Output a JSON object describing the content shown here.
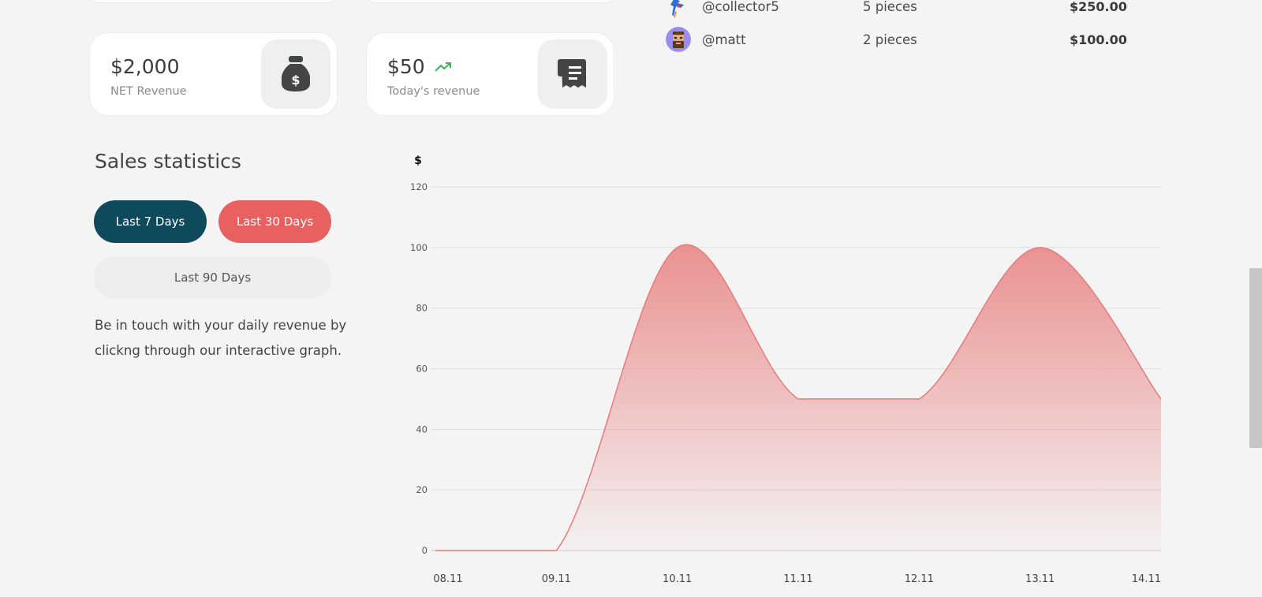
{
  "stats": {
    "net_revenue": {
      "value": "$2,000",
      "label": "NET Revenue",
      "icon": "money-bag-icon"
    },
    "todays_revenue": {
      "value": "$50",
      "label": "Today's revenue",
      "trend_icon": "trending-up-icon",
      "icon": "receipt-icon"
    }
  },
  "buyers": [
    {
      "handle": "@collector5",
      "pieces": "5 pieces",
      "amount": "$250.00",
      "avatar": "bird-avatar"
    },
    {
      "handle": "@matt",
      "pieces": "2 pieces",
      "amount": "$100.00",
      "avatar": "bearded-man-avatar"
    }
  ],
  "sales": {
    "title": "Sales statistics",
    "buttons": {
      "last7": "Last 7 Days",
      "last30": "Last 30 Days",
      "last90": "Last 90 Days"
    },
    "description": "Be in touch with your daily revenue by clickng through our interactive graph."
  },
  "colors": {
    "accent_dark": "#0f4a5c",
    "accent_coral": "#e8605f",
    "trend_green": "#3cb35a",
    "area": "#e98c8c"
  },
  "chart_data": {
    "type": "area",
    "title": "",
    "ylabel": "$",
    "xlabel": "",
    "categories": [
      "08.11",
      "09.11",
      "10.11",
      "11.11",
      "12.11",
      "13.11",
      "14.11"
    ],
    "values": [
      0,
      0,
      100,
      50,
      50,
      100,
      50
    ],
    "ylim": [
      0,
      120
    ],
    "yticks": [
      0,
      20,
      40,
      60,
      80,
      100,
      120
    ],
    "grid": true,
    "curve": "smooth"
  }
}
